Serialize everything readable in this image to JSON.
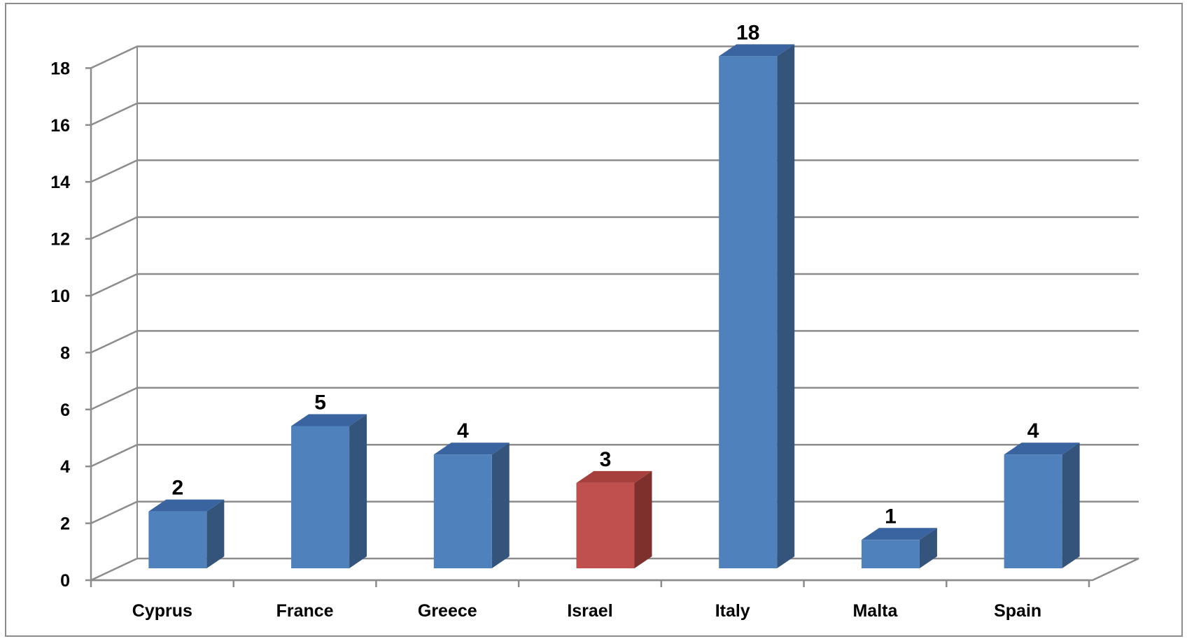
{
  "chart_data": {
    "type": "bar",
    "style": "3d-clustered-column",
    "categories": [
      "Cyprus",
      "France",
      "Greece",
      "Israel",
      "Italy",
      "Malta",
      "Spain"
    ],
    "values": [
      2,
      5,
      4,
      3,
      18,
      1,
      4
    ],
    "highlight": "Israel",
    "title": "",
    "xlabel": "",
    "ylabel": "",
    "ylim": [
      0,
      18
    ],
    "yticks": [
      "0",
      "2",
      "4",
      "6",
      "8",
      "10",
      "12",
      "14",
      "16",
      "18"
    ],
    "data_labels": true,
    "grid": true,
    "legend": "none",
    "colors": {
      "bar_front": "#4f81bd",
      "bar_side": "#34547c",
      "bar_top": "#3a64a0",
      "highlight_front": "#c0504d",
      "highlight_side": "#7e302d",
      "highlight_top": "#a6403c",
      "grid": "#8c8c8c",
      "frame": "#8c8c8c"
    }
  }
}
